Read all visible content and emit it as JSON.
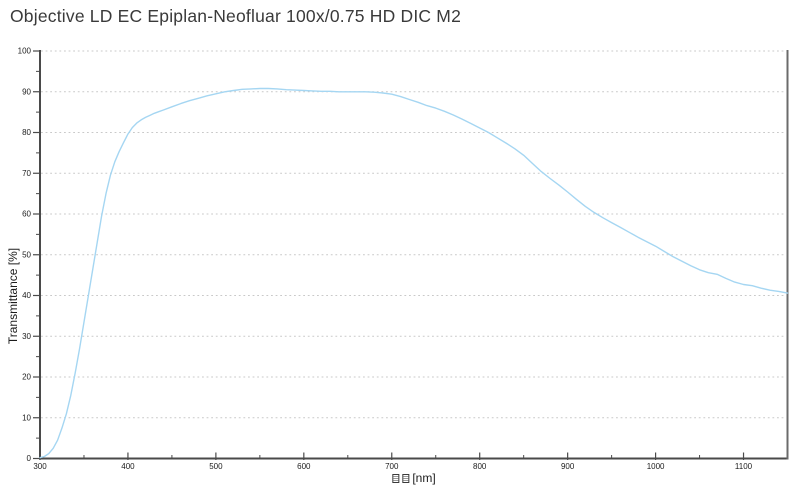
{
  "title": "Objective LD EC Epiplan-Neofluar 100x/0.75 HD DIC M2",
  "xaxis_title": {
    "prefix_missing_glyph_boxes": 2,
    "unit": "[nm]"
  },
  "yaxis_title": "Transmittance [%]",
  "colors": {
    "curve": "#a5d6f2",
    "axis": "#4a4a4a",
    "right_border": "#6b6b6b",
    "grid": "#c9c9c9",
    "title_text": "#3a3a3a",
    "background": "#ffffff"
  },
  "chart_data": {
    "type": "line",
    "title": "Objective LD EC Epiplan-Neofluar 100x/0.75 HD DIC M2",
    "xlabel": "[nm]",
    "ylabel": "Transmittance [%]",
    "xlim": [
      300,
      1150
    ],
    "ylim": [
      0,
      100
    ],
    "x_major_ticks": [
      300,
      400,
      500,
      600,
      700,
      800,
      900,
      1000,
      1100
    ],
    "y_major_ticks": [
      0,
      10,
      20,
      30,
      40,
      50,
      60,
      70,
      80,
      90,
      100
    ],
    "x_minor_tick_step": 50,
    "y_minor_tick_step": 5,
    "grid": "horizontal-dashed-only",
    "legend": "none",
    "series": [
      {
        "name": "transmittance",
        "color": "#a5d6f2",
        "points": [
          [
            300,
            0.2
          ],
          [
            305,
            0.5
          ],
          [
            310,
            1.2
          ],
          [
            315,
            2.5
          ],
          [
            320,
            4.5
          ],
          [
            325,
            7.5
          ],
          [
            330,
            11
          ],
          [
            335,
            15.5
          ],
          [
            340,
            21
          ],
          [
            345,
            27
          ],
          [
            350,
            33.5
          ],
          [
            355,
            40
          ],
          [
            360,
            46.5
          ],
          [
            365,
            53
          ],
          [
            370,
            59.5
          ],
          [
            375,
            65
          ],
          [
            380,
            69.5
          ],
          [
            385,
            72.8
          ],
          [
            390,
            75.3
          ],
          [
            395,
            77.5
          ],
          [
            400,
            79.6
          ],
          [
            405,
            81.2
          ],
          [
            410,
            82.3
          ],
          [
            415,
            83.1
          ],
          [
            420,
            83.7
          ],
          [
            425,
            84.2
          ],
          [
            430,
            84.7
          ],
          [
            435,
            85.1
          ],
          [
            440,
            85.5
          ],
          [
            450,
            86.3
          ],
          [
            460,
            87.1
          ],
          [
            470,
            87.8
          ],
          [
            480,
            88.4
          ],
          [
            490,
            89.0
          ],
          [
            500,
            89.5
          ],
          [
            510,
            90.0
          ],
          [
            520,
            90.3
          ],
          [
            530,
            90.6
          ],
          [
            540,
            90.7
          ],
          [
            550,
            90.8
          ],
          [
            560,
            90.8
          ],
          [
            570,
            90.7
          ],
          [
            580,
            90.5
          ],
          [
            590,
            90.4
          ],
          [
            600,
            90.3
          ],
          [
            610,
            90.2
          ],
          [
            620,
            90.1
          ],
          [
            630,
            90.1
          ],
          [
            640,
            90.0
          ],
          [
            650,
            90.0
          ],
          [
            660,
            90.0
          ],
          [
            670,
            90.0
          ],
          [
            680,
            89.9
          ],
          [
            690,
            89.7
          ],
          [
            700,
            89.4
          ],
          [
            710,
            88.8
          ],
          [
            720,
            88.1
          ],
          [
            730,
            87.4
          ],
          [
            740,
            86.6
          ],
          [
            750,
            86.0
          ],
          [
            760,
            85.2
          ],
          [
            770,
            84.3
          ],
          [
            780,
            83.3
          ],
          [
            790,
            82.2
          ],
          [
            800,
            81.1
          ],
          [
            810,
            80.0
          ],
          [
            820,
            78.7
          ],
          [
            830,
            77.4
          ],
          [
            840,
            76.0
          ],
          [
            850,
            74.4
          ],
          [
            860,
            72.4
          ],
          [
            870,
            70.4
          ],
          [
            880,
            68.7
          ],
          [
            890,
            67.1
          ],
          [
            900,
            65.4
          ],
          [
            910,
            63.6
          ],
          [
            920,
            61.9
          ],
          [
            930,
            60.4
          ],
          [
            940,
            59.1
          ],
          [
            950,
            57.9
          ],
          [
            960,
            56.7
          ],
          [
            970,
            55.5
          ],
          [
            980,
            54.3
          ],
          [
            990,
            53.2
          ],
          [
            1000,
            52.1
          ],
          [
            1010,
            50.8
          ],
          [
            1020,
            49.5
          ],
          [
            1030,
            48.4
          ],
          [
            1040,
            47.3
          ],
          [
            1050,
            46.3
          ],
          [
            1060,
            45.6
          ],
          [
            1070,
            45.2
          ],
          [
            1080,
            44.2
          ],
          [
            1090,
            43.3
          ],
          [
            1100,
            42.7
          ],
          [
            1110,
            42.4
          ],
          [
            1120,
            41.8
          ],
          [
            1130,
            41.3
          ],
          [
            1140,
            41.0
          ],
          [
            1150,
            40.6
          ]
        ]
      }
    ]
  }
}
